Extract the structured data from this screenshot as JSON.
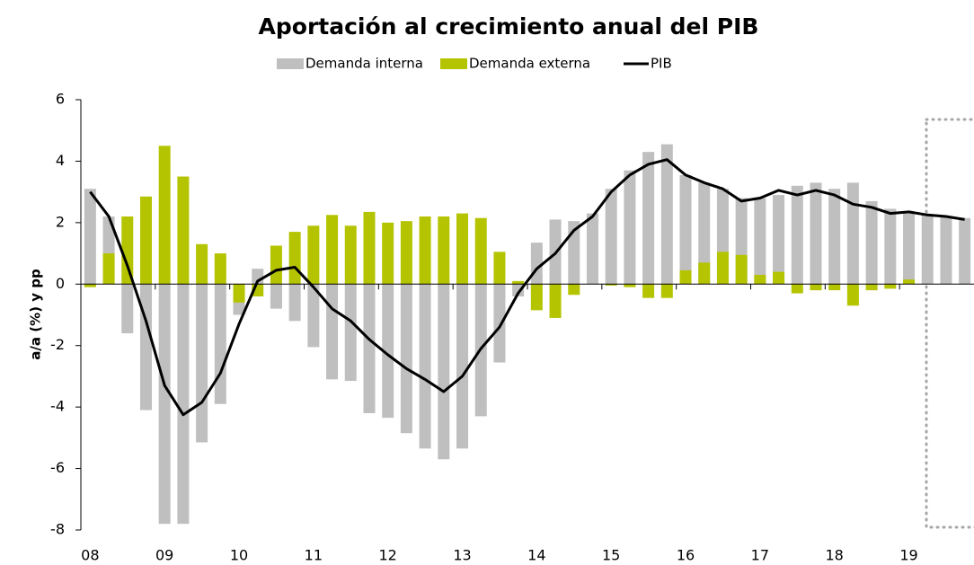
{
  "chart_data": {
    "type": "bar_line",
    "title": "Aportación al crecimiento anual del PIB",
    "y_label": "a/a (%) y pp",
    "categories": [
      "08",
      null,
      null,
      null,
      "09",
      null,
      null,
      null,
      "10",
      null,
      null,
      null,
      "11",
      null,
      null,
      null,
      "12",
      null,
      null,
      null,
      "13",
      null,
      null,
      null,
      "14",
      null,
      null,
      null,
      "15",
      null,
      null,
      null,
      "16",
      null,
      null,
      null,
      "17",
      null,
      null,
      null,
      "18",
      null,
      null,
      null,
      "19",
      null,
      null,
      null
    ],
    "series": [
      {
        "name": "Demanda interna",
        "kind": "bar",
        "color": "#bfbfbf",
        "values": [
          3.1,
          2.2,
          -1.6,
          -4.1,
          -7.8,
          -7.8,
          -5.15,
          -3.9,
          -1.0,
          0.5,
          -0.8,
          -1.2,
          -2.05,
          -3.1,
          -3.15,
          -4.2,
          -4.35,
          -4.85,
          -5.35,
          -5.7,
          -5.35,
          -4.3,
          -2.55,
          -0.4,
          1.35,
          2.1,
          2.05,
          2.3,
          3.1,
          3.7,
          4.3,
          4.55,
          3.55,
          3.3,
          3.1,
          2.8,
          2.8,
          2.9,
          3.2,
          3.3,
          3.1,
          3.3,
          2.7,
          2.45,
          2.3,
          2.25,
          2.2,
          2.15
        ]
      },
      {
        "name": "Demanda externa",
        "kind": "bar",
        "color": "#b5c400",
        "values": [
          -0.1,
          1.0,
          2.2,
          2.85,
          4.5,
          3.5,
          1.3,
          1.0,
          -0.6,
          -0.4,
          1.25,
          1.7,
          1.9,
          2.25,
          1.9,
          2.35,
          2.0,
          2.05,
          2.2,
          2.2,
          2.3,
          2.15,
          1.05,
          0.1,
          -0.85,
          -1.1,
          -0.35,
          0,
          -0.05,
          -0.1,
          -0.45,
          -0.45,
          0.45,
          0.7,
          1.05,
          0.95,
          0.3,
          0.4,
          -0.3,
          -0.2,
          -0.2,
          -0.7,
          -0.2,
          -0.15,
          0.15,
          0,
          0,
          0
        ]
      },
      {
        "name": "PIB",
        "kind": "line",
        "color": "#000000",
        "values": [
          3.0,
          2.2,
          0.6,
          -1.2,
          -3.3,
          -4.25,
          -3.85,
          -2.9,
          -1.3,
          0.1,
          0.45,
          0.55,
          -0.1,
          -0.8,
          -1.2,
          -1.8,
          -2.3,
          -2.75,
          -3.1,
          -3.5,
          -3.0,
          -2.1,
          -1.4,
          -0.3,
          0.5,
          1.0,
          1.75,
          2.2,
          3.0,
          3.55,
          3.9,
          4.05,
          3.55,
          3.3,
          3.1,
          2.7,
          2.8,
          3.05,
          2.9,
          3.05,
          2.9,
          2.6,
          2.5,
          2.3,
          2.35,
          2.25,
          2.2,
          2.1
        ]
      }
    ],
    "ylim": [
      -8,
      6
    ],
    "yticks": [
      -8,
      -6,
      -4,
      -2,
      0,
      2,
      4,
      6
    ]
  }
}
